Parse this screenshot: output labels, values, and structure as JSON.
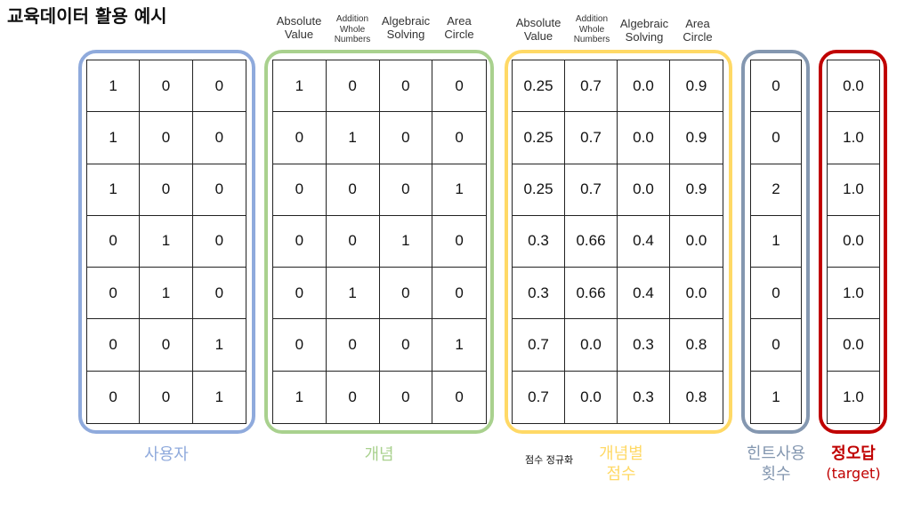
{
  "title": "교육데이터 활용 예시",
  "colors": {
    "user": "#8faadc",
    "concept": "#a9d18e",
    "score": "#ffd966",
    "hint": "#8497b0",
    "target": "#c00000"
  },
  "groups": {
    "user": {
      "label": "사용자",
      "rows": [
        [
          "1",
          "0",
          "0"
        ],
        [
          "1",
          "0",
          "0"
        ],
        [
          "1",
          "0",
          "0"
        ],
        [
          "0",
          "1",
          "0"
        ],
        [
          "0",
          "1",
          "0"
        ],
        [
          "0",
          "0",
          "1"
        ],
        [
          "0",
          "0",
          "1"
        ]
      ]
    },
    "concept": {
      "label": "개념",
      "headers": [
        {
          "line1": "Absolute",
          "line2": "Value"
        },
        {
          "line1": "Addition",
          "line2": "Whole",
          "line3": "Numbers"
        },
        {
          "line1": "Algebraic",
          "line2": "Solving"
        },
        {
          "line1": "Area",
          "line2": "Circle"
        }
      ],
      "rows": [
        [
          "1",
          "0",
          "0",
          "0"
        ],
        [
          "0",
          "1",
          "0",
          "0"
        ],
        [
          "0",
          "0",
          "0",
          "1"
        ],
        [
          "0",
          "0",
          "1",
          "0"
        ],
        [
          "0",
          "1",
          "0",
          "0"
        ],
        [
          "0",
          "0",
          "0",
          "1"
        ],
        [
          "1",
          "0",
          "0",
          "0"
        ]
      ]
    },
    "score": {
      "label_line1": "개념별",
      "label_line2": "점수",
      "note": "점수 정규화",
      "headers": [
        {
          "line1": "Absolute",
          "line2": "Value"
        },
        {
          "line1": "Addition",
          "line2": "Whole",
          "line3": "Numbers"
        },
        {
          "line1": "Algebraic",
          "line2": "Solving"
        },
        {
          "line1": "Area",
          "line2": "Circle"
        }
      ],
      "rows": [
        [
          "0.25",
          "0.7",
          "0.0",
          "0.9"
        ],
        [
          "0.25",
          "0.7",
          "0.0",
          "0.9"
        ],
        [
          "0.25",
          "0.7",
          "0.0",
          "0.9"
        ],
        [
          "0.3",
          "0.66",
          "0.4",
          "0.0"
        ],
        [
          "0.3",
          "0.66",
          "0.4",
          "0.0"
        ],
        [
          "0.7",
          "0.0",
          "0.3",
          "0.8"
        ],
        [
          "0.7",
          "0.0",
          "0.3",
          "0.8"
        ]
      ]
    },
    "hint": {
      "label_line1": "힌트사용",
      "label_line2": "횟수",
      "rows": [
        [
          "0"
        ],
        [
          "0"
        ],
        [
          "2"
        ],
        [
          "1"
        ],
        [
          "0"
        ],
        [
          "0"
        ],
        [
          "1"
        ]
      ]
    },
    "target": {
      "label_line1": "정오답",
      "label_line2": "(target)",
      "rows": [
        [
          "0.0"
        ],
        [
          "1.0"
        ],
        [
          "1.0"
        ],
        [
          "0.0"
        ],
        [
          "1.0"
        ],
        [
          "0.0"
        ],
        [
          "1.0"
        ]
      ]
    }
  }
}
